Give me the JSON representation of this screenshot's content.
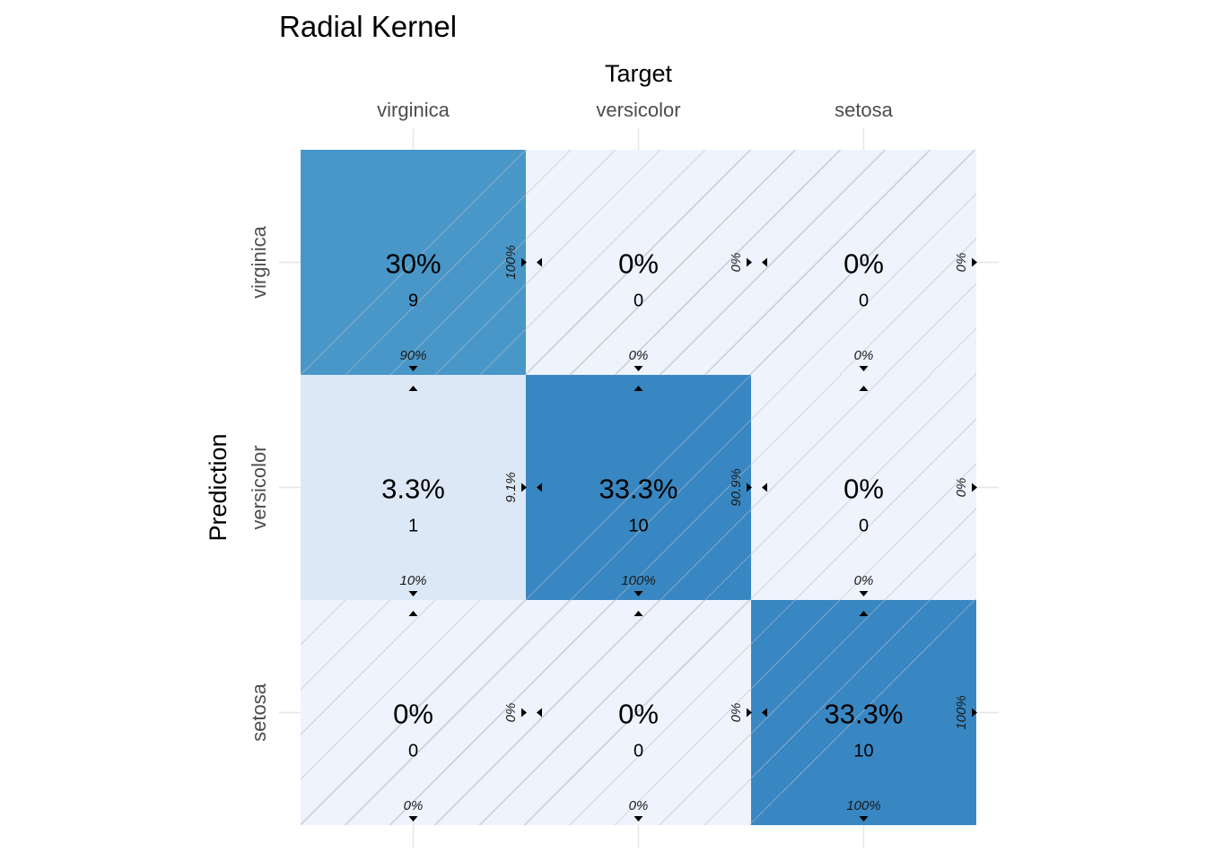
{
  "chart_data": {
    "type": "heatmap",
    "title": "Radial Kernel",
    "xlabel": "Target",
    "ylabel": "Prediction",
    "x_categories": [
      "virginica",
      "versicolor",
      "setosa"
    ],
    "y_categories": [
      "virginica",
      "versicolor",
      "setosa"
    ],
    "cells": [
      {
        "prediction": "virginica",
        "target": "virginica",
        "count": 9,
        "percent": "30%",
        "row_percent": "100%",
        "col_percent": "90%"
      },
      {
        "prediction": "virginica",
        "target": "versicolor",
        "count": 0,
        "percent": "0%",
        "row_percent": "0%",
        "col_percent": "0%"
      },
      {
        "prediction": "virginica",
        "target": "setosa",
        "count": 0,
        "percent": "0%",
        "row_percent": "0%",
        "col_percent": "0%"
      },
      {
        "prediction": "versicolor",
        "target": "virginica",
        "count": 1,
        "percent": "3.3%",
        "row_percent": "9.1%",
        "col_percent": "10%"
      },
      {
        "prediction": "versicolor",
        "target": "versicolor",
        "count": 10,
        "percent": "33.3%",
        "row_percent": "90.9%",
        "col_percent": "100%"
      },
      {
        "prediction": "versicolor",
        "target": "setosa",
        "count": 0,
        "percent": "0%",
        "row_percent": "0%",
        "col_percent": "0%"
      },
      {
        "prediction": "setosa",
        "target": "virginica",
        "count": 0,
        "percent": "0%",
        "row_percent": "0%",
        "col_percent": "0%"
      },
      {
        "prediction": "setosa",
        "target": "versicolor",
        "count": 0,
        "percent": "0%",
        "row_percent": "0%",
        "col_percent": "0%"
      },
      {
        "prediction": "setosa",
        "target": "setosa",
        "count": 10,
        "percent": "33.3%",
        "row_percent": "100%",
        "col_percent": "100%"
      }
    ],
    "colors": {
      "high": "#3987c2",
      "mid": "#4997c8",
      "low": "#dde8f7",
      "zero": "#eef3fd",
      "hatch": "#b9bec8",
      "grid": "#e6e6e6"
    }
  }
}
